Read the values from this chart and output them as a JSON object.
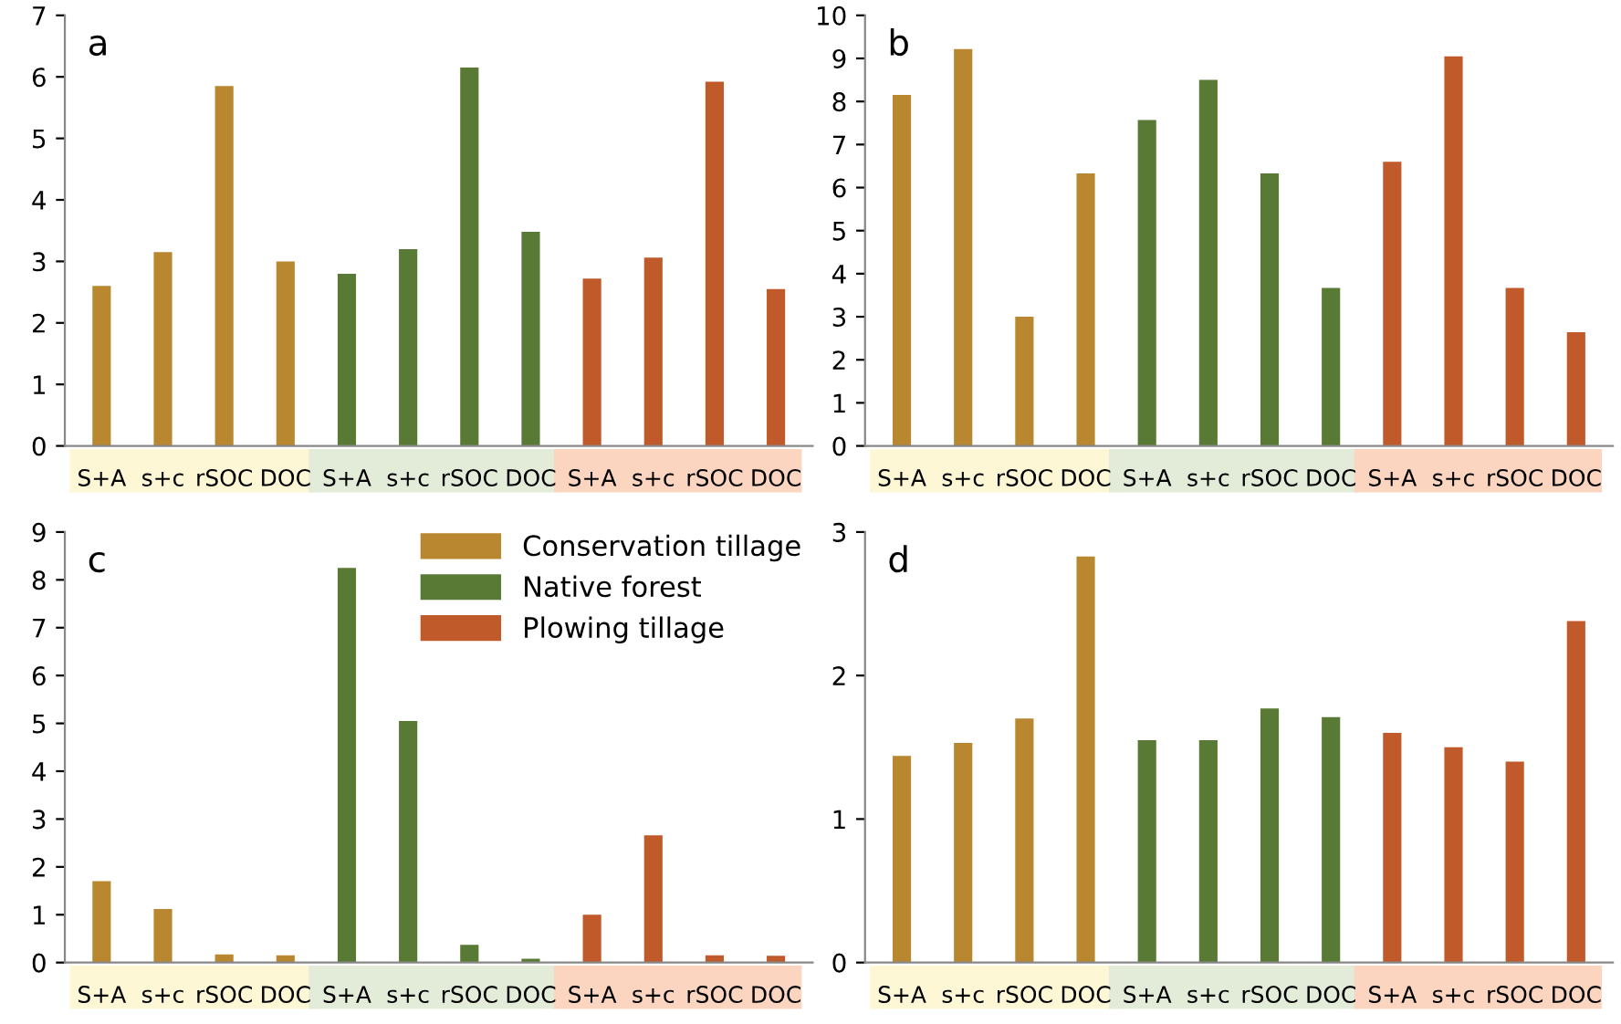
{
  "chart_data": [
    {
      "type": "bar",
      "annotations": [
        "a"
      ],
      "categories": [
        "S+A",
        "s+c",
        "rSOC",
        "DOC",
        "S+A",
        "s+c",
        "rSOC",
        "DOC",
        "S+A",
        "s+c",
        "rSOC",
        "DOC"
      ],
      "series": [
        {
          "color": "#b8872f",
          "values": [
            2.6,
            3.15,
            5.85,
            3.0,
            null,
            null,
            null,
            null,
            null,
            null,
            null,
            null
          ]
        },
        {
          "color": "#587a35",
          "values": [
            null,
            null,
            null,
            null,
            2.8,
            3.2,
            6.15,
            3.48,
            null,
            null,
            null,
            null
          ]
        },
        {
          "color": "#c05a2b",
          "values": [
            null,
            null,
            null,
            null,
            null,
            null,
            null,
            null,
            2.72,
            3.06,
            5.92,
            2.55
          ]
        }
      ],
      "ylim": [
        0,
        7
      ],
      "yticks": [
        0,
        1,
        2,
        3,
        4,
        5,
        6,
        7
      ],
      "grid": false,
      "legend": false
    },
    {
      "type": "bar",
      "annotations": [
        "b"
      ],
      "categories": [
        "S+A",
        "s+c",
        "rSOC",
        "DOC",
        "S+A",
        "s+c",
        "rSOC",
        "DOC",
        "S+A",
        "s+c",
        "rSOC",
        "DOC"
      ],
      "series": [
        {
          "color": "#b8872f",
          "values": [
            8.15,
            9.22,
            3.0,
            6.33,
            null,
            null,
            null,
            null,
            null,
            null,
            null,
            null
          ]
        },
        {
          "color": "#587a35",
          "values": [
            null,
            null,
            null,
            null,
            7.57,
            8.5,
            6.33,
            3.67,
            null,
            null,
            null,
            null
          ]
        },
        {
          "color": "#c05a2b",
          "values": [
            null,
            null,
            null,
            null,
            null,
            null,
            null,
            null,
            6.6,
            9.05,
            3.67,
            2.64
          ]
        }
      ],
      "ylim": [
        0,
        10
      ],
      "yticks": [
        0,
        1,
        2,
        3,
        4,
        5,
        6,
        7,
        8,
        9,
        10
      ],
      "grid": false,
      "legend": false
    },
    {
      "type": "bar",
      "annotations": [
        "c"
      ],
      "categories": [
        "S+A",
        "s+c",
        "rSOC",
        "DOC",
        "S+A",
        "s+c",
        "rSOC",
        "DOC",
        "S+A",
        "s+c",
        "rSOC",
        "DOC"
      ],
      "series": [
        {
          "name": "Conservation tillage",
          "color": "#b8872f",
          "values": [
            1.7,
            1.12,
            0.17,
            0.15,
            null,
            null,
            null,
            null,
            null,
            null,
            null,
            null
          ]
        },
        {
          "name": "Native forest",
          "color": "#587a35",
          "values": [
            null,
            null,
            null,
            null,
            8.25,
            5.05,
            0.37,
            0.08,
            null,
            null,
            null,
            null
          ]
        },
        {
          "name": "Plowing tillage",
          "color": "#c05a2b",
          "values": [
            null,
            null,
            null,
            null,
            null,
            null,
            null,
            null,
            1.0,
            2.66,
            0.15,
            0.14
          ]
        }
      ],
      "ylim": [
        0,
        9
      ],
      "yticks": [
        0,
        1,
        2,
        3,
        4,
        5,
        6,
        7,
        8,
        9
      ],
      "grid": false,
      "legend": "top right"
    },
    {
      "type": "bar",
      "annotations": [
        "d"
      ],
      "categories": [
        "S+A",
        "s+c",
        "rSOC",
        "DOC",
        "S+A",
        "s+c",
        "rSOC",
        "DOC",
        "S+A",
        "s+c",
        "rSOC",
        "DOC"
      ],
      "series": [
        {
          "color": "#b8872f",
          "values": [
            1.44,
            1.53,
            1.7,
            2.83,
            null,
            null,
            null,
            null,
            null,
            null,
            null,
            null
          ]
        },
        {
          "color": "#587a35",
          "values": [
            null,
            null,
            null,
            null,
            1.55,
            1.55,
            1.77,
            1.71,
            null,
            null,
            null,
            null
          ]
        },
        {
          "color": "#c05a2b",
          "values": [
            null,
            null,
            null,
            null,
            null,
            null,
            null,
            null,
            1.6,
            1.5,
            1.4,
            2.38
          ]
        }
      ],
      "ylim": [
        0,
        3
      ],
      "yticks": [
        0,
        1,
        2,
        3
      ],
      "grid": false,
      "legend": false
    }
  ]
}
